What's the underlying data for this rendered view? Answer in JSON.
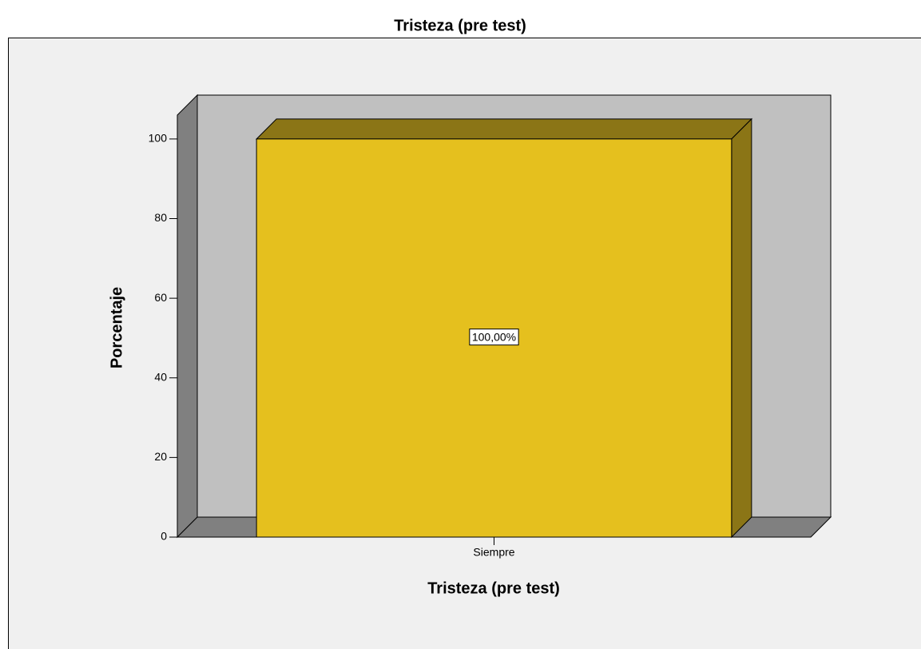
{
  "chart_data": {
    "type": "bar3d",
    "title": "Tristeza (pre test)",
    "x_label": "Tristeza (pre test)",
    "y_label": "Porcentaje",
    "categories": [
      "Siempre"
    ],
    "values": [
      100
    ],
    "value_labels": [
      "100,00%"
    ],
    "color": "#e5c01e",
    "ylim": [
      0,
      106
    ],
    "yticks": [
      0,
      20,
      40,
      60,
      80,
      100
    ]
  }
}
